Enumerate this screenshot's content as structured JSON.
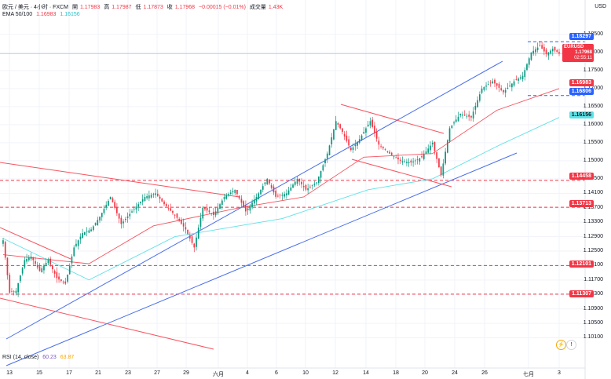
{
  "header": {
    "line1": {
      "symbol": "欧元 / 美元 · 4小时 · FXCM",
      "open_label": "開",
      "open": "1.17983",
      "high_label": "高",
      "high": "1.17987",
      "low_label": "低",
      "low": "1.17873",
      "close_label": "收",
      "close": "1.17968",
      "change": "−0.00015 (−0.01%)",
      "volume_label": "成交量",
      "volume": "1.43K"
    },
    "line2": {
      "label": "EMA 50/100",
      "ema50": "1.16983",
      "ema100": "1.16156"
    }
  },
  "currency": "USD",
  "rsi": {
    "label": "RSI (14, close)",
    "value1": "60.23",
    "value2": "63.87"
  },
  "price_badges": {
    "high_line": "1.18297",
    "symbol": "EURUSD",
    "last": "1.17968",
    "countdown": "02:55:11",
    "ema50": "1.16983",
    "low_line": "1.16806",
    "ema100": "1.16156",
    "support1": "1.14458",
    "support2": "1.13713",
    "support3": "1.12101",
    "support4": "1.11307"
  },
  "colors": {
    "up": "#089981",
    "down": "#f23645",
    "ema50": "#f7525f",
    "ema100": "#5ee1e6",
    "channel": "#4a6ee8",
    "trend": "#f7525f",
    "blue_badge": "#2962ff"
  },
  "chart_data": {
    "type": "candlestick",
    "symbol": "EURUSD",
    "timeframe": "4小时",
    "ylim": [
      1.0985,
      1.188
    ],
    "y_ticks": [
      "1.18500",
      "1.18000",
      "1.17500",
      "1.17000",
      "1.16500",
      "1.16000",
      "1.15500",
      "1.15000",
      "1.14500",
      "1.14100",
      "1.13700",
      "1.13300",
      "1.12900",
      "1.12500",
      "1.12100",
      "1.11700",
      "1.11300",
      "1.10900",
      "1.10500",
      "1.10100"
    ],
    "x_labels": [
      "13",
      "15",
      "17",
      "21",
      "23",
      "27",
      "29",
      "六月",
      "4",
      "6",
      "10",
      "12",
      "14",
      "18",
      "20",
      "24",
      "26",
      "七月",
      "3"
    ],
    "horizontal_levels": [
      1.18297,
      1.16806,
      1.14458,
      1.13713,
      1.12101,
      1.11307
    ],
    "last_price": 1.17968,
    "anchors": [
      [
        0,
        1.128
      ],
      [
        3,
        1.1135
      ],
      [
        6,
        1.114
      ],
      [
        10,
        1.1225
      ],
      [
        13,
        1.1235
      ],
      [
        17,
        1.1195
      ],
      [
        21,
        1.1225
      ],
      [
        25,
        1.1175
      ],
      [
        29,
        1.116
      ],
      [
        33,
        1.126
      ],
      [
        37,
        1.13
      ],
      [
        41,
        1.131
      ],
      [
        45,
        1.1345
      ],
      [
        50,
        1.14
      ],
      [
        55,
        1.1325
      ],
      [
        60,
        1.136
      ],
      [
        66,
        1.14
      ],
      [
        71,
        1.141
      ],
      [
        75,
        1.138
      ],
      [
        80,
        1.135
      ],
      [
        85,
        1.131
      ],
      [
        89,
        1.126
      ],
      [
        93,
        1.137
      ],
      [
        98,
        1.135
      ],
      [
        103,
        1.14
      ],
      [
        108,
        1.142
      ],
      [
        113,
        1.136
      ],
      [
        118,
        1.14
      ],
      [
        123,
        1.145
      ],
      [
        127,
        1.14
      ],
      [
        132,
        1.141
      ],
      [
        137,
        1.145
      ],
      [
        141,
        1.142
      ],
      [
        146,
        1.144
      ],
      [
        151,
        1.152
      ],
      [
        155,
        1.161
      ],
      [
        158,
        1.158
      ],
      [
        162,
        1.153
      ],
      [
        166,
        1.156
      ],
      [
        171,
        1.161
      ],
      [
        175,
        1.1545
      ],
      [
        180,
        1.152
      ],
      [
        185,
        1.15
      ],
      [
        190,
        1.1495
      ],
      [
        195,
        1.151
      ],
      [
        200,
        1.155
      ],
      [
        204,
        1.146
      ],
      [
        208,
        1.159
      ],
      [
        213,
        1.163
      ],
      [
        218,
        1.162
      ],
      [
        223,
        1.17
      ],
      [
        228,
        1.172
      ],
      [
        233,
        1.169
      ],
      [
        238,
        1.172
      ],
      [
        242,
        1.1735
      ],
      [
        246,
        1.18
      ],
      [
        250,
        1.1818
      ],
      [
        253,
        1.1795
      ],
      [
        256,
        1.181
      ],
      [
        259,
        1.1797
      ]
    ],
    "ema50": [
      [
        0,
        1.124
      ],
      [
        40,
        1.1215
      ],
      [
        70,
        1.132
      ],
      [
        110,
        1.137
      ],
      [
        140,
        1.14
      ],
      [
        168,
        1.151
      ],
      [
        200,
        1.152
      ],
      [
        230,
        1.164
      ],
      [
        259,
        1.17
      ]
    ],
    "ema100": [
      [
        0,
        1.1285
      ],
      [
        40,
        1.117
      ],
      [
        80,
        1.129
      ],
      [
        130,
        1.134
      ],
      [
        170,
        1.142
      ],
      [
        200,
        1.145
      ],
      [
        230,
        1.154
      ],
      [
        259,
        1.162
      ]
    ]
  }
}
